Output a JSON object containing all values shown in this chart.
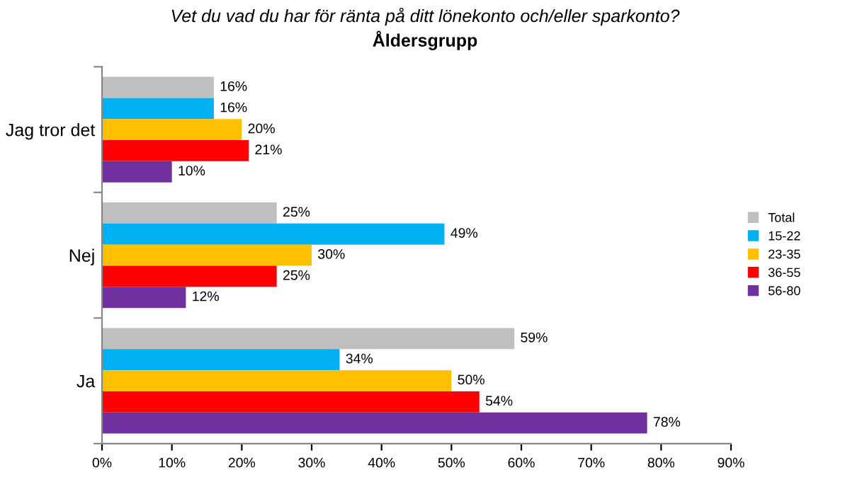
{
  "chart_data": {
    "type": "bar",
    "orientation": "horizontal",
    "title": "Vet du vad du har för ränta på ditt lönekonto och/eller sparkonto?",
    "subtitle": "Åldersgrupp",
    "categories": [
      "Jag tror det",
      "Nej",
      "Ja"
    ],
    "series": [
      {
        "name": "Total",
        "color": "#bfbfbf",
        "values": [
          16,
          25,
          59
        ],
        "value_labels": [
          "16%",
          "25%",
          "59%"
        ]
      },
      {
        "name": "15-22",
        "color": "#00b0f0",
        "values": [
          16,
          49,
          34
        ],
        "value_labels": [
          "16%",
          "49%",
          "34%"
        ]
      },
      {
        "name": "23-35",
        "color": "#ffc000",
        "values": [
          20,
          30,
          50
        ],
        "value_labels": [
          "20%",
          "30%",
          "50%"
        ]
      },
      {
        "name": "36-55",
        "color": "#ff0000",
        "values": [
          21,
          25,
          54
        ],
        "value_labels": [
          "21%",
          "25%",
          "54%"
        ]
      },
      {
        "name": "56-80",
        "color": "#7030a0",
        "values": [
          10,
          12,
          78
        ],
        "value_labels": [
          "10%",
          "12%",
          "78%"
        ]
      }
    ],
    "xlim": [
      0,
      90
    ],
    "xticks": [
      {
        "value": 0,
        "label": "0%"
      },
      {
        "value": 10,
        "label": "10%"
      },
      {
        "value": 20,
        "label": "20%"
      },
      {
        "value": 30,
        "label": "30%"
      },
      {
        "value": 40,
        "label": "40%"
      },
      {
        "value": 50,
        "label": "50%"
      },
      {
        "value": 60,
        "label": "60%"
      },
      {
        "value": 70,
        "label": "70%"
      },
      {
        "value": 80,
        "label": "80%"
      },
      {
        "value": 90,
        "label": "90%"
      }
    ],
    "grid": false,
    "legend": "right"
  }
}
